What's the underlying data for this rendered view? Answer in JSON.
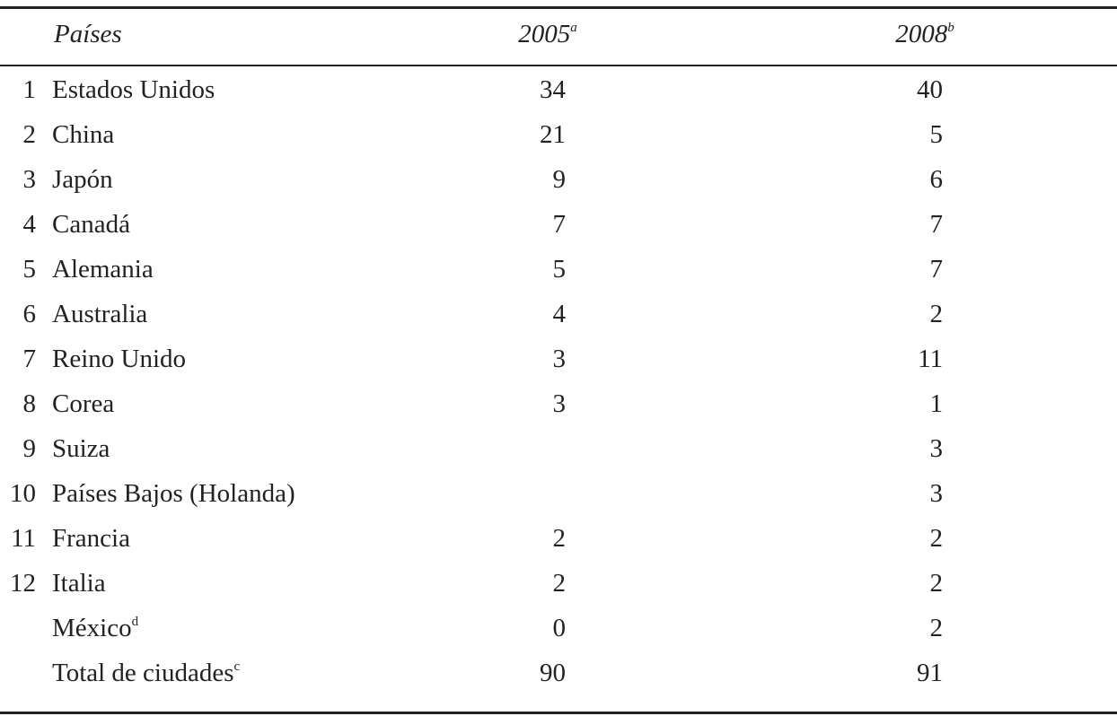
{
  "header": {
    "country": "Países",
    "col2005": {
      "label": "2005",
      "note": "a"
    },
    "col2008": {
      "label": "2008",
      "note": "b"
    }
  },
  "rows": [
    {
      "rank": 1,
      "country": "Estados Unidos",
      "v2005": 34,
      "v2008": 40
    },
    {
      "rank": 2,
      "country": "China",
      "v2005": 21,
      "v2008": 5
    },
    {
      "rank": 3,
      "country": "Japón",
      "v2005": 9,
      "v2008": 6
    },
    {
      "rank": 4,
      "country": "Canadá",
      "v2005": 7,
      "v2008": 7
    },
    {
      "rank": 5,
      "country": "Alemania",
      "v2005": 5,
      "v2008": 7
    },
    {
      "rank": 6,
      "country": "Australia",
      "v2005": 4,
      "v2008": 2
    },
    {
      "rank": 7,
      "country": "Reino Unido",
      "v2005": 3,
      "v2008": 11
    },
    {
      "rank": 8,
      "country": "Corea",
      "v2005": 3,
      "v2008": 1
    },
    {
      "rank": 9,
      "country": "Suiza",
      "v2008": 3
    },
    {
      "rank": 10,
      "country": "Países Bajos (Holanda)",
      "v2008": 3
    },
    {
      "rank": 11,
      "country": "Francia",
      "v2005": 2,
      "v2008": 2
    },
    {
      "rank": 12,
      "country": "Italia",
      "v2005": 2,
      "v2008": 2
    },
    {
      "country": "México",
      "note": "d",
      "v2005": 0,
      "v2008": 2
    },
    {
      "country": "Total de ciudades",
      "note": "c",
      "v2005": 90,
      "v2008": 91
    }
  ]
}
